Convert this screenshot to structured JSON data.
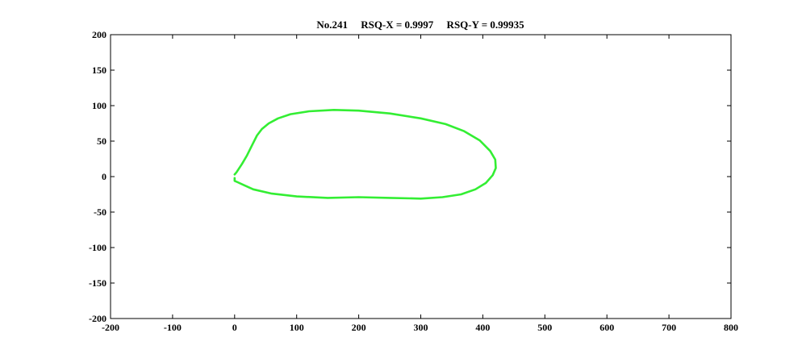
{
  "chart_data": {
    "type": "line",
    "title": "No.241     RSQ-X = 0.9997     RSQ-Y = 0.99935",
    "xlabel": "",
    "ylabel": "",
    "xlim": [
      -200,
      800
    ],
    "ylim": [
      -200,
      200
    ],
    "x_ticks": [
      -200,
      -100,
      0,
      100,
      200,
      300,
      400,
      500,
      600,
      700,
      800
    ],
    "y_ticks": [
      200,
      150,
      100,
      50,
      0,
      -50,
      -100,
      -150,
      -200
    ],
    "grid": false,
    "legend": "none",
    "series": [
      {
        "color": "#33ee33",
        "x": [
          0,
          3,
          6,
          12,
          20,
          28,
          36,
          44,
          55,
          70,
          90,
          120,
          160,
          200,
          250,
          300,
          340,
          370,
          395,
          412,
          420,
          421,
          416,
          405,
          388,
          365,
          335,
          300,
          250,
          200,
          150,
          100,
          60,
          30,
          15,
          5,
          0,
          0
        ],
        "y": [
          3,
          6,
          10,
          18,
          30,
          44,
          58,
          67,
          75,
          82,
          88,
          92,
          94,
          93,
          89,
          82,
          74,
          64,
          51,
          36,
          24,
          12,
          2,
          -9,
          -18,
          -25,
          -29,
          -31,
          -30,
          -29,
          -30,
          -28,
          -24,
          -18,
          -12,
          -8,
          -6,
          -2
        ]
      }
    ]
  }
}
